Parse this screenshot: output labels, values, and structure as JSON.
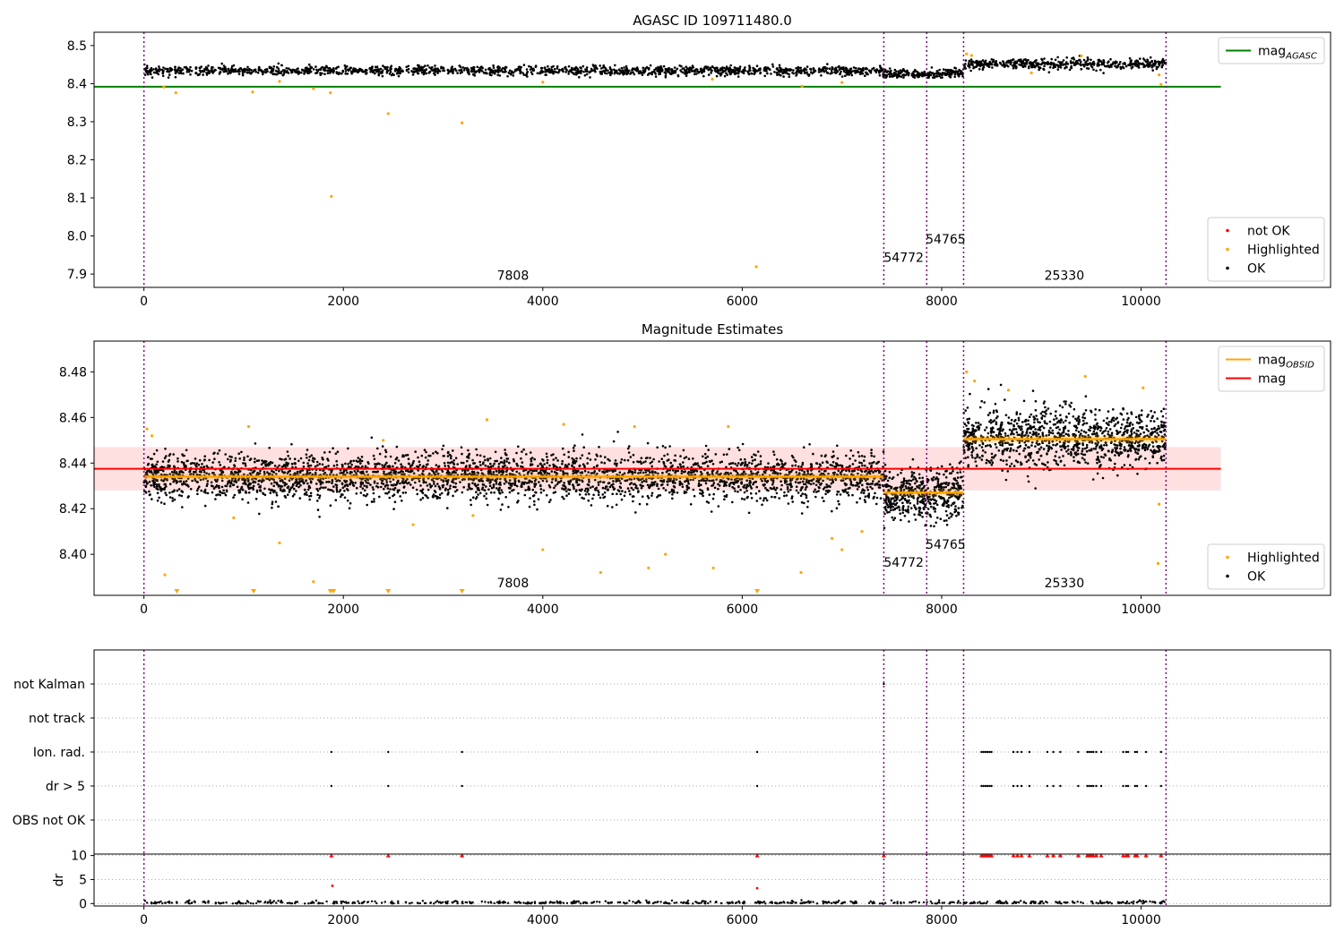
{
  "chart_data": [
    {
      "type": "scatter",
      "title": "AGASC ID 109711480.0",
      "xlim": [
        -500,
        11900
      ],
      "ylim": [
        7.865,
        8.535
      ],
      "xticks": [
        0,
        2000,
        4000,
        6000,
        8000,
        10000
      ],
      "yticks": [
        7.9,
        8.0,
        8.1,
        8.2,
        8.3,
        8.4,
        8.5
      ],
      "ytick_decimals": 1,
      "legends": [
        {
          "position": "upper-right",
          "entries": [
            {
              "label": "mag",
              "sub": "AGASC",
              "kind": "line",
              "color": "#008000"
            }
          ]
        },
        {
          "position": "lower-right",
          "entries": [
            {
              "label": "not OK",
              "kind": "dot",
              "color": "#ff0000"
            },
            {
              "label": "Highlighted",
              "kind": "dot",
              "color": "#ffa500"
            },
            {
              "label": "OK",
              "kind": "dot",
              "color": "#000000"
            }
          ]
        }
      ],
      "hlines": [
        {
          "y": 8.392,
          "x0": -500,
          "x1": 10800,
          "color": "#008000"
        }
      ],
      "ok_segments": [
        {
          "x0": 0,
          "x1": 7410,
          "mean": 8.434,
          "spread": 0.006,
          "n": 1500
        },
        {
          "x0": 7410,
          "x1": 8220,
          "mean": 8.426,
          "spread": 0.006,
          "n": 220
        },
        {
          "x0": 8220,
          "x1": 10250,
          "mean": 8.451,
          "spread": 0.007,
          "n": 500
        }
      ],
      "highlighted_points": [
        {
          "x": 200,
          "y": 8.391
        },
        {
          "x": 320,
          "y": 8.376
        },
        {
          "x": 1090,
          "y": 8.378
        },
        {
          "x": 1700,
          "y": 8.387
        },
        {
          "x": 1870,
          "y": 8.376
        },
        {
          "x": 1880,
          "y": 8.104
        },
        {
          "x": 2450,
          "y": 8.321
        },
        {
          "x": 3190,
          "y": 8.297
        },
        {
          "x": 6140,
          "y": 7.919
        },
        {
          "x": 1360,
          "y": 8.406
        },
        {
          "x": 4000,
          "y": 8.404
        },
        {
          "x": 5700,
          "y": 8.412
        },
        {
          "x": 6600,
          "y": 8.393
        },
        {
          "x": 7000,
          "y": 8.403
        },
        {
          "x": 10200,
          "y": 8.398
        },
        {
          "x": 10180,
          "y": 8.423
        },
        {
          "x": 8250,
          "y": 8.478
        },
        {
          "x": 8300,
          "y": 8.474
        },
        {
          "x": 9400,
          "y": 8.473
        },
        {
          "x": 8900,
          "y": 8.428
        }
      ],
      "vlines": [
        0,
        7420,
        7850,
        8220,
        10250
      ],
      "obsid_labels": [
        {
          "text": "7808",
          "x": 3700,
          "y": 7.885
        },
        {
          "text": "54772",
          "x": 7620,
          "y": 7.932
        },
        {
          "text": "54765",
          "x": 8040,
          "y": 7.98
        },
        {
          "text": "25330",
          "x": 9230,
          "y": 7.885
        }
      ]
    },
    {
      "type": "scatter",
      "title": "Magnitude Estimates",
      "xlim": [
        -500,
        11900
      ],
      "ylim": [
        8.382,
        8.4935
      ],
      "xticks": [
        0,
        2000,
        4000,
        6000,
        8000,
        10000
      ],
      "yticks": [
        8.4,
        8.42,
        8.44,
        8.46,
        8.48
      ],
      "ytick_decimals": 2,
      "legends": [
        {
          "position": "upper-right",
          "entries": [
            {
              "label": "mag",
              "sub": "OBSID",
              "kind": "line",
              "color": "#ffa500"
            },
            {
              "label": "mag",
              "kind": "line",
              "color": "#ff0000"
            }
          ]
        },
        {
          "position": "lower-right",
          "entries": [
            {
              "label": "Highlighted",
              "kind": "dot",
              "color": "#ffa500"
            },
            {
              "label": "OK",
              "kind": "dot",
              "color": "#000000"
            }
          ]
        }
      ],
      "band": {
        "y0": 8.428,
        "y1": 8.447,
        "x0": -500,
        "x1": 10800,
        "color": "#ff0000",
        "opacity": 0.12
      },
      "hlines": [
        {
          "y": 8.4375,
          "x0": -500,
          "x1": 10800,
          "color": "#ff0000"
        }
      ],
      "obsid_means": [
        {
          "x0": 0,
          "x1": 7420,
          "y": 8.434
        },
        {
          "x0": 7420,
          "x1": 8220,
          "y": 8.427
        },
        {
          "x0": 8220,
          "x1": 10250,
          "y": 8.4505
        }
      ],
      "ok_segments": [
        {
          "x0": 0,
          "x1": 7420,
          "mean": 8.434,
          "spread": 0.0052,
          "n": 3200
        },
        {
          "x0": 7420,
          "x1": 8220,
          "mean": 8.426,
          "spread": 0.0056,
          "n": 500
        },
        {
          "x0": 8220,
          "x1": 10250,
          "mean": 8.451,
          "spread": 0.0065,
          "n": 1100
        }
      ],
      "highlighted_points": [
        {
          "x": 30,
          "y": 8.455
        },
        {
          "x": 80,
          "y": 8.452
        },
        {
          "x": 210,
          "y": 8.391
        },
        {
          "x": 900,
          "y": 8.416
        },
        {
          "x": 1050,
          "y": 8.456
        },
        {
          "x": 1360,
          "y": 8.405
        },
        {
          "x": 1700,
          "y": 8.388
        },
        {
          "x": 2400,
          "y": 8.45
        },
        {
          "x": 2700,
          "y": 8.413
        },
        {
          "x": 3300,
          "y": 8.417
        },
        {
          "x": 3440,
          "y": 8.459
        },
        {
          "x": 4000,
          "y": 8.402
        },
        {
          "x": 4210,
          "y": 8.457
        },
        {
          "x": 4580,
          "y": 8.392
        },
        {
          "x": 4920,
          "y": 8.456
        },
        {
          "x": 5060,
          "y": 8.394
        },
        {
          "x": 5230,
          "y": 8.4
        },
        {
          "x": 5710,
          "y": 8.394
        },
        {
          "x": 5860,
          "y": 8.456
        },
        {
          "x": 6590,
          "y": 8.392
        },
        {
          "x": 6900,
          "y": 8.407
        },
        {
          "x": 7000,
          "y": 8.402
        },
        {
          "x": 7200,
          "y": 8.41
        },
        {
          "x": 10180,
          "y": 8.422
        },
        {
          "x": 10170,
          "y": 8.396
        },
        {
          "x": 9440,
          "y": 8.478
        },
        {
          "x": 8250,
          "y": 8.48
        },
        {
          "x": 8330,
          "y": 8.476
        },
        {
          "x": 10020,
          "y": 8.473
        },
        {
          "x": 8670,
          "y": 8.472
        }
      ],
      "clipped_markers": [
        330,
        1100,
        1870,
        1900,
        2450,
        3190,
        6150
      ],
      "vlines": [
        0,
        7420,
        7850,
        8220,
        10250
      ],
      "obsid_labels": [
        {
          "text": "7808",
          "x": 3700,
          "y": 8.3855
        },
        {
          "text": "54772",
          "x": 7620,
          "y": 8.3945
        },
        {
          "text": "54765",
          "x": 8040,
          "y": 8.4025
        },
        {
          "text": "25330",
          "x": 9230,
          "y": 8.3855
        }
      ]
    },
    {
      "type": "scatter",
      "title": "",
      "xlim": [
        -500,
        11900
      ],
      "categories": [
        "not Kalman",
        "not track",
        "Ion. rad.",
        "dr > 5",
        "OBS not OK"
      ],
      "flag_points": {
        "not Kalman": [
          7420
        ],
        "not track": [],
        "Ion. rad.": [
          1880,
          2450,
          3190,
          6150,
          8400,
          8420,
          8440,
          8460,
          8480,
          8500,
          8720,
          8760,
          8800,
          8880,
          9060,
          9120,
          9190,
          9370,
          9460,
          9480,
          9500,
          9520,
          9550,
          9600,
          9820,
          9850,
          9870,
          9940,
          9960,
          10050,
          10200
        ],
        "dr > 5": [
          1880,
          2450,
          3190,
          6150,
          8400,
          8420,
          8440,
          8460,
          8480,
          8500,
          8720,
          8760,
          8800,
          8880,
          9060,
          9120,
          9190,
          9370,
          9460,
          9480,
          9500,
          9520,
          9550,
          9600,
          9820,
          9850,
          9870,
          9940,
          9960,
          10050,
          10200
        ],
        "OBS not OK": []
      },
      "vlines": [
        0,
        7420,
        7850,
        8220,
        10250
      ]
    },
    {
      "type": "scatter",
      "title": "",
      "ylabel": "dr",
      "xlim": [
        -500,
        11900
      ],
      "ylim": [
        -0.5,
        10.3
      ],
      "xticks": [
        0,
        2000,
        4000,
        6000,
        8000,
        10000
      ],
      "yticks": [
        0,
        5,
        10
      ],
      "ytick_decimals": 0,
      "clip_value": 10,
      "clip_points": [
        1880,
        2450,
        3190,
        6150,
        7420,
        8400,
        8420,
        8440,
        8460,
        8480,
        8500,
        8720,
        8760,
        8800,
        8880,
        9060,
        9120,
        9190,
        9370,
        9460,
        9480,
        9500,
        9520,
        9550,
        9600,
        9820,
        9850,
        9870,
        9940,
        9960,
        10050,
        10200
      ],
      "mid_points": [
        {
          "x": 1890,
          "y": 3.7
        },
        {
          "x": 6150,
          "y": 3.2
        }
      ],
      "baseline": {
        "x0": 0,
        "x1": 10250,
        "n": 600
      },
      "vlines": [
        0,
        7420,
        7850,
        8220,
        10250
      ]
    }
  ]
}
